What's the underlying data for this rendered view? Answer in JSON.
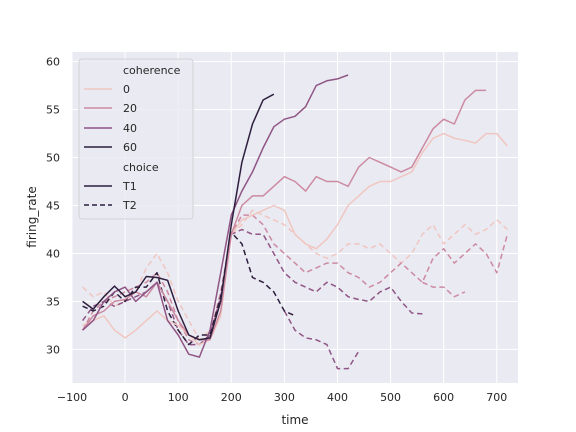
{
  "chart_data": {
    "type": "line",
    "xlabel": "time",
    "ylabel": "firing_rate",
    "xlim": [
      -100,
      740
    ],
    "ylim": [
      26.5,
      61
    ],
    "xticks": [
      -100,
      0,
      100,
      200,
      300,
      400,
      500,
      600,
      700
    ],
    "xtick_labels": [
      "−100",
      "0",
      "100",
      "200",
      "300",
      "400",
      "500",
      "600",
      "700"
    ],
    "yticks": [
      30,
      35,
      40,
      45,
      50,
      55,
      60
    ],
    "ytick_labels": [
      "30",
      "35",
      "40",
      "45",
      "50",
      "55",
      "60"
    ],
    "grid": true,
    "legend": {
      "placement": "top-left",
      "hue_title": "coherence",
      "hue_levels": [
        "0",
        "20",
        "40",
        "60"
      ],
      "style_title": "choice",
      "style_levels": [
        "T1",
        "T2"
      ]
    },
    "colors": {
      "0": "#f0c6c1",
      "20": "#cc8aa1",
      "40": "#8f5585",
      "60": "#2d1e3e",
      "background": "#eaeaf2",
      "grid": "#ffffff"
    },
    "series": [
      {
        "coherence": "0",
        "choice": "T1",
        "x": [
          -80,
          -60,
          -40,
          -20,
          0,
          20,
          40,
          60,
          80,
          100,
          120,
          140,
          160,
          180,
          200,
          220,
          240,
          260,
          280,
          300,
          320,
          340,
          360,
          380,
          400,
          420,
          440,
          460,
          480,
          500,
          520,
          540,
          560,
          580,
          600,
          620,
          640,
          660,
          680,
          700,
          720
        ],
        "y": [
          32.5,
          33,
          33.5,
          32,
          31.2,
          32,
          33,
          34,
          33,
          32.5,
          31.5,
          30.5,
          31,
          33.5,
          42,
          43.5,
          44,
          44.5,
          45,
          44.5,
          42,
          41,
          40.5,
          41.5,
          43,
          45,
          46,
          47,
          47.5,
          47.5,
          48,
          48.5,
          50.5,
          52,
          52.5,
          52,
          51.8,
          51.5,
          52.5,
          52.5,
          51.2
        ]
      },
      {
        "coherence": "20",
        "choice": "T1",
        "x": [
          -80,
          -60,
          -40,
          -20,
          0,
          20,
          40,
          60,
          80,
          100,
          120,
          140,
          160,
          180,
          200,
          220,
          240,
          260,
          280,
          300,
          320,
          340,
          360,
          380,
          400,
          420,
          440,
          460,
          480,
          500,
          520,
          540,
          560,
          580,
          600,
          620,
          640,
          660,
          680
        ],
        "y": [
          32,
          33.5,
          34,
          35,
          35.2,
          36,
          35.5,
          37,
          35,
          33,
          31.5,
          31,
          31,
          34,
          42,
          45,
          46,
          46,
          47,
          48,
          47.5,
          46.5,
          48,
          47.5,
          47.5,
          47,
          49,
          50,
          49.5,
          49,
          48.5,
          49,
          51,
          53,
          54,
          53.5,
          56,
          57,
          57
        ]
      },
      {
        "coherence": "40",
        "choice": "T1",
        "x": [
          -80,
          -60,
          -40,
          -20,
          0,
          20,
          40,
          60,
          80,
          100,
          120,
          140,
          160,
          180,
          200,
          220,
          240,
          260,
          280,
          300,
          320,
          340,
          360,
          380,
          400,
          420
        ],
        "y": [
          32,
          33,
          35,
          36,
          36.5,
          35,
          36,
          37,
          33,
          31.5,
          29.5,
          29.2,
          32,
          38,
          44,
          46.5,
          48.5,
          51,
          53.2,
          54,
          54.3,
          55.3,
          57.5,
          58,
          58.2,
          58.6
        ]
      },
      {
        "coherence": "60",
        "choice": "T1",
        "x": [
          -80,
          -60,
          -40,
          -20,
          0,
          20,
          40,
          60,
          80,
          100,
          120,
          140,
          160,
          180,
          200,
          220,
          240,
          260,
          280
        ],
        "y": [
          35,
          34.2,
          35.5,
          36.6,
          35.5,
          36,
          37.6,
          37.5,
          37.2,
          34,
          31.5,
          31,
          31.2,
          35,
          43,
          49.5,
          53.5,
          56,
          56.6
        ]
      },
      {
        "coherence": "0",
        "choice": "T2",
        "x": [
          -80,
          -60,
          -40,
          -20,
          0,
          20,
          40,
          60,
          80,
          100,
          120,
          140,
          160,
          180,
          200,
          220,
          240,
          260,
          280,
          300,
          320,
          340,
          360,
          380,
          400,
          420,
          440,
          460,
          480,
          500,
          520,
          540,
          560,
          580,
          600,
          620,
          640,
          660,
          680,
          700,
          720
        ],
        "y": [
          36.5,
          35.5,
          36,
          34.5,
          35,
          36,
          38.5,
          40,
          38,
          35,
          33,
          31,
          32,
          35,
          42,
          43,
          44.5,
          44,
          43.5,
          43,
          42,
          41,
          40,
          39.5,
          40,
          41,
          41,
          40.5,
          41,
          40,
          39,
          40,
          42,
          43,
          41,
          42,
          43,
          42,
          42.5,
          43.5,
          42.5
        ]
      },
      {
        "coherence": "20",
        "choice": "T2",
        "x": [
          -80,
          -60,
          -40,
          -20,
          0,
          20,
          40,
          60,
          80,
          100,
          120,
          140,
          160,
          180,
          200,
          220,
          240,
          260,
          280,
          300,
          320,
          340,
          360,
          380,
          400,
          420,
          440,
          460,
          480,
          500,
          520,
          540,
          560,
          580,
          600,
          620,
          640,
          660,
          680,
          700,
          720
        ],
        "y": [
          32,
          34,
          35,
          35.5,
          36,
          36.5,
          37,
          38,
          36,
          33,
          31,
          30.5,
          31.5,
          36,
          42,
          44,
          44,
          43,
          41,
          40,
          39,
          38,
          38.5,
          39,
          39,
          38,
          37.5,
          36.5,
          37,
          38,
          39,
          38,
          37,
          39.5,
          40.5,
          39,
          40,
          41,
          40,
          38,
          42
        ]
      },
      {
        "coherence": "40",
        "choice": "T2",
        "x": [
          -80,
          -60,
          -40,
          -20,
          0,
          20,
          40,
          60,
          80,
          100,
          120,
          140,
          160,
          180,
          200,
          220,
          240,
          260,
          280,
          300,
          320,
          340,
          360,
          380,
          400,
          420,
          440,
          460,
          480,
          500,
          520,
          540,
          560
        ],
        "y": [
          33,
          34.5,
          35,
          34.5,
          35,
          35.5,
          36,
          37,
          35,
          32,
          30.5,
          30.5,
          31.5,
          35.5,
          42,
          42.5,
          42,
          42,
          40,
          38,
          37,
          36.5,
          36,
          37,
          36.5,
          35.5,
          35.2,
          35,
          36,
          36.5,
          35,
          33.8,
          33.7
        ]
      },
      {
        "coherence": "60",
        "choice": "T2",
        "x": [
          -80,
          -60,
          -40,
          -20,
          0,
          20,
          40,
          60,
          80,
          100,
          120,
          140,
          160,
          180,
          200,
          220,
          240,
          260,
          280,
          300,
          320
        ],
        "y": [
          34.5,
          34,
          34.5,
          36,
          35,
          36.5,
          36.5,
          38,
          34,
          32,
          30.5,
          31.5,
          31.5,
          35.5,
          42.2,
          41,
          37.5,
          37,
          36,
          34,
          33.5
        ]
      },
      {
        "coherence": "40",
        "choice": "T2",
        "x": [
          300,
          320,
          340,
          360,
          380,
          400,
          420,
          440
        ],
        "y": [
          34,
          32,
          31.2,
          31,
          30.5,
          28,
          28,
          29.8
        ]
      },
      {
        "coherence": "20",
        "choice": "T2",
        "x": [
          560,
          580,
          600,
          620,
          640
        ],
        "y": [
          37,
          36.5,
          36.5,
          35.5,
          36
        ]
      }
    ]
  }
}
